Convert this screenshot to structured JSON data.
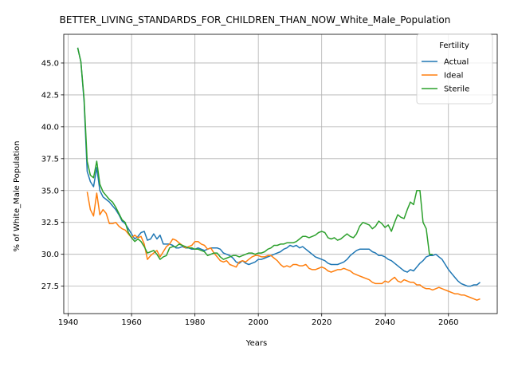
{
  "chart_data": {
    "type": "line",
    "title": "BETTER_LIVING_STANDARDS_FOR_CHILDREN_THAN_NOW_White_Male_Population",
    "xlabel": "Years",
    "ylabel": "% of White_Male Population",
    "xlim": [
      1938.6,
      2075.4
    ],
    "ylim": [
      25.35,
      47.25
    ],
    "xticks": [
      1940,
      1960,
      1980,
      2000,
      2020,
      2040,
      2060
    ],
    "yticks": [
      27.5,
      30.0,
      32.5,
      35.0,
      37.5,
      40.0,
      42.5,
      45.0
    ],
    "xtick_labels": [
      "1940",
      "1960",
      "1980",
      "2000",
      "2020",
      "2040",
      "2060"
    ],
    "ytick_labels": [
      "27.5",
      "30.0",
      "32.5",
      "35.0",
      "37.5",
      "40.0",
      "42.5",
      "45.0"
    ],
    "grid": true,
    "legend": {
      "title": "Fertility",
      "position": "top-right"
    },
    "series": [
      {
        "name": "Actual",
        "color": "#1f77b4",
        "x": [
          1943,
          1944,
          1945,
          1946,
          1947,
          1948,
          1949,
          1950,
          1951,
          1952,
          1953,
          1954,
          1955,
          1956,
          1957,
          1958,
          1959,
          1960,
          1961,
          1962,
          1963,
          1964,
          1965,
          1966,
          1967,
          1968,
          1969,
          1970,
          1971,
          1972,
          1973,
          1974,
          1975,
          1976,
          1977,
          1978,
          1979,
          1980,
          1981,
          1982,
          1983,
          1984,
          1985,
          1986,
          1987,
          1988,
          1989,
          1990,
          1991,
          1992,
          1993,
          1994,
          1995,
          1996,
          1997,
          1998,
          1999,
          2000,
          2001,
          2002,
          2003,
          2004,
          2005,
          2006,
          2007,
          2008,
          2009,
          2010,
          2011,
          2012,
          2013,
          2014,
          2015,
          2016,
          2017,
          2018,
          2019,
          2020,
          2021,
          2022,
          2023,
          2024,
          2025,
          2026,
          2027,
          2028,
          2029,
          2030,
          2031,
          2032,
          2033,
          2034,
          2035,
          2036,
          2037,
          2038,
          2039,
          2040,
          2041,
          2042,
          2043,
          2044,
          2045,
          2046,
          2047,
          2048,
          2049,
          2050,
          2051,
          2052,
          2053,
          2054,
          2055,
          2056,
          2057,
          2058,
          2059,
          2060,
          2061,
          2062,
          2063,
          2064,
          2065,
          2066,
          2067,
          2068,
          2069,
          2070
        ],
        "y": [
          46.2,
          45.1,
          42.0,
          36.5,
          35.7,
          35.3,
          36.8,
          35.0,
          34.5,
          34.3,
          34.1,
          33.8,
          33.5,
          33.1,
          32.6,
          32.4,
          32.0,
          31.6,
          31.2,
          31.4,
          31.7,
          31.8,
          31.1,
          31.2,
          31.6,
          31.2,
          31.5,
          30.8,
          30.8,
          30.8,
          30.7,
          30.5,
          30.5,
          30.6,
          30.5,
          30.5,
          30.4,
          30.4,
          30.5,
          30.4,
          30.3,
          30.4,
          30.5,
          30.5,
          30.5,
          30.4,
          30.1,
          30.0,
          29.9,
          29.7,
          29.4,
          29.3,
          29.5,
          29.3,
          29.2,
          29.3,
          29.4,
          29.6,
          29.6,
          29.7,
          29.8,
          29.9,
          30.0,
          30.1,
          30.2,
          30.4,
          30.5,
          30.7,
          30.6,
          30.7,
          30.5,
          30.6,
          30.4,
          30.2,
          30.0,
          29.8,
          29.7,
          29.6,
          29.5,
          29.3,
          29.2,
          29.2,
          29.2,
          29.3,
          29.4,
          29.6,
          29.9,
          30.1,
          30.3,
          30.4,
          30.4,
          30.4,
          30.4,
          30.2,
          30.1,
          29.9,
          29.9,
          29.8,
          29.6,
          29.5,
          29.3,
          29.1,
          28.9,
          28.7,
          28.6,
          28.8,
          28.7,
          29.0,
          29.3,
          29.5,
          29.8,
          29.9,
          29.9,
          30.0,
          29.8,
          29.6,
          29.2,
          28.8,
          28.5,
          28.2,
          27.9,
          27.7,
          27.6,
          27.5,
          27.5,
          27.6,
          27.6,
          27.8
        ]
      },
      {
        "name": "Ideal",
        "color": "#ff7f0e",
        "x": [
          1946,
          1947,
          1948,
          1949,
          1950,
          1951,
          1952,
          1953,
          1954,
          1955,
          1956,
          1957,
          1958,
          1959,
          1960,
          1961,
          1962,
          1963,
          1964,
          1965,
          1966,
          1967,
          1968,
          1969,
          1970,
          1971,
          1972,
          1973,
          1974,
          1975,
          1976,
          1977,
          1978,
          1979,
          1980,
          1981,
          1982,
          1983,
          1984,
          1985,
          1986,
          1987,
          1988,
          1989,
          1990,
          1991,
          1992,
          1993,
          1994,
          1995,
          1996,
          1997,
          1998,
          1999,
          2000,
          2001,
          2002,
          2003,
          2004,
          2005,
          2006,
          2007,
          2008,
          2009,
          2010,
          2011,
          2012,
          2013,
          2014,
          2015,
          2016,
          2017,
          2018,
          2019,
          2020,
          2021,
          2022,
          2023,
          2024,
          2025,
          2026,
          2027,
          2028,
          2029,
          2030,
          2031,
          2032,
          2033,
          2034,
          2035,
          2036,
          2037,
          2038,
          2039,
          2040,
          2041,
          2042,
          2043,
          2044,
          2045,
          2046,
          2047,
          2048,
          2049,
          2050,
          2051,
          2052,
          2053,
          2054,
          2055,
          2056,
          2057,
          2058,
          2059,
          2060,
          2061,
          2062,
          2063,
          2064,
          2065,
          2066,
          2067,
          2068,
          2069,
          2070
        ],
        "y": [
          34.9,
          33.5,
          33.0,
          34.8,
          33.1,
          33.5,
          33.2,
          32.4,
          32.4,
          32.5,
          32.2,
          32.0,
          31.9,
          31.6,
          31.3,
          31.5,
          31.3,
          31.4,
          30.8,
          29.6,
          29.9,
          30.1,
          30.3,
          29.8,
          30.2,
          30.6,
          30.8,
          31.2,
          31.1,
          30.9,
          30.7,
          30.5,
          30.6,
          30.7,
          31.0,
          31.0,
          30.8,
          30.7,
          30.4,
          30.5,
          30.1,
          29.8,
          29.5,
          29.4,
          29.5,
          29.2,
          29.1,
          29.0,
          29.4,
          29.5,
          29.4,
          29.6,
          29.8,
          29.9,
          29.9,
          29.8,
          29.8,
          29.9,
          29.9,
          29.7,
          29.5,
          29.2,
          29.0,
          29.1,
          29.0,
          29.2,
          29.2,
          29.1,
          29.1,
          29.2,
          28.9,
          28.8,
          28.8,
          28.9,
          29.0,
          28.9,
          28.7,
          28.6,
          28.7,
          28.8,
          28.8,
          28.9,
          28.8,
          28.7,
          28.5,
          28.4,
          28.3,
          28.2,
          28.1,
          28.0,
          27.8,
          27.7,
          27.7,
          27.7,
          27.9,
          27.8,
          28.0,
          28.2,
          27.9,
          27.8,
          28.0,
          27.9,
          27.8,
          27.8,
          27.6,
          27.6,
          27.4,
          27.3,
          27.3,
          27.2,
          27.3,
          27.4,
          27.3,
          27.2,
          27.1,
          27.0,
          26.9,
          26.9,
          26.8,
          26.8,
          26.7,
          26.6,
          26.5,
          26.4,
          26.5
        ]
      },
      {
        "name": "Sterile",
        "color": "#2ca02c",
        "x": [
          1943,
          1944,
          1945,
          1946,
          1947,
          1948,
          1949,
          1950,
          1951,
          1952,
          1953,
          1954,
          1955,
          1956,
          1957,
          1958,
          1959,
          1960,
          1961,
          1962,
          1963,
          1964,
          1965,
          1966,
          1967,
          1968,
          1969,
          1970,
          1971,
          1972,
          1973,
          1974,
          1975,
          1976,
          1977,
          1978,
          1979,
          1980,
          1981,
          1982,
          1983,
          1984,
          1985,
          1986,
          1987,
          1988,
          1989,
          1990,
          1991,
          1992,
          1993,
          1994,
          1995,
          1996,
          1997,
          1998,
          1999,
          2000,
          2001,
          2002,
          2003,
          2004,
          2005,
          2006,
          2007,
          2008,
          2009,
          2010,
          2011,
          2012,
          2013,
          2014,
          2015,
          2016,
          2017,
          2018,
          2019,
          2020,
          2021,
          2022,
          2023,
          2024,
          2025,
          2026,
          2027,
          2028,
          2029,
          2030,
          2031,
          2032,
          2033,
          2034,
          2035,
          2036,
          2037,
          2038,
          2039,
          2040,
          2041,
          2042,
          2043,
          2044,
          2045,
          2046,
          2047,
          2048,
          2049,
          2050,
          2051,
          2052,
          2053,
          2054,
          2055
        ],
        "y": [
          46.2,
          45.1,
          42.2,
          37.3,
          36.2,
          36.0,
          37.3,
          35.5,
          34.9,
          34.6,
          34.3,
          34.1,
          33.7,
          33.2,
          32.7,
          32.5,
          31.7,
          31.3,
          31.0,
          31.2,
          31.0,
          30.6,
          30.1,
          30.2,
          30.3,
          30.0,
          29.6,
          29.8,
          29.9,
          30.5,
          30.6,
          30.6,
          30.8,
          30.7,
          30.6,
          30.5,
          30.5,
          30.4,
          30.4,
          30.3,
          30.2,
          29.9,
          30.0,
          30.1,
          30.1,
          29.8,
          29.6,
          29.7,
          29.8,
          29.9,
          29.9,
          29.8,
          29.9,
          30.0,
          30.1,
          30.1,
          30.0,
          30.1,
          30.1,
          30.2,
          30.4,
          30.5,
          30.7,
          30.7,
          30.8,
          30.8,
          30.9,
          30.9,
          30.9,
          31.0,
          31.2,
          31.4,
          31.4,
          31.3,
          31.4,
          31.5,
          31.7,
          31.8,
          31.7,
          31.3,
          31.2,
          31.3,
          31.1,
          31.2,
          31.4,
          31.6,
          31.4,
          31.3,
          31.6,
          32.2,
          32.5,
          32.4,
          32.3,
          32.0,
          32.2,
          32.6,
          32.4,
          32.1,
          32.3,
          31.8,
          32.5,
          33.1,
          32.9,
          32.8,
          33.5,
          34.1,
          33.9,
          35.0,
          35.0,
          32.5,
          32.0,
          30.0,
          30.0
        ]
      }
    ]
  }
}
